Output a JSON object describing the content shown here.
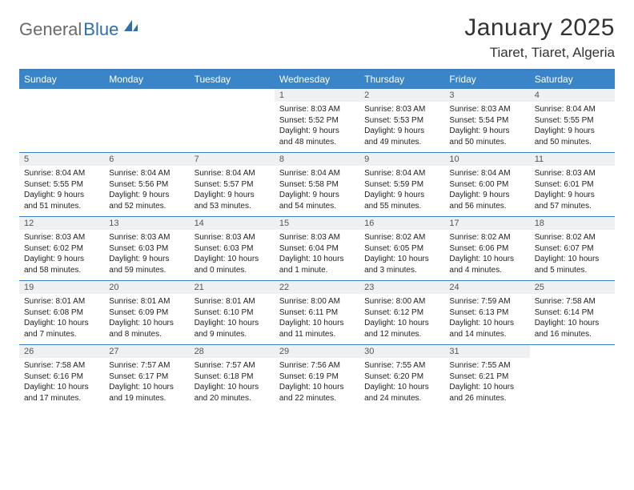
{
  "logo": {
    "text1": "General",
    "text2": "Blue",
    "shape_color": "#2f6fab"
  },
  "title": "January 2025",
  "location": "Tiaret, Tiaret, Algeria",
  "colors": {
    "header_bg": "#3a85c8",
    "header_fg": "#ffffff",
    "rule": "#3a7fbf",
    "daynum_bg": "#eef0f1",
    "daynum_fg": "#555555",
    "text": "#222222",
    "background": "#ffffff"
  },
  "weekdays": [
    "Sunday",
    "Monday",
    "Tuesday",
    "Wednesday",
    "Thursday",
    "Friday",
    "Saturday"
  ],
  "weeks": [
    [
      null,
      null,
      null,
      {
        "d": "1",
        "sr": "8:03 AM",
        "ss": "5:52 PM",
        "dl": "9 hours and 48 minutes."
      },
      {
        "d": "2",
        "sr": "8:03 AM",
        "ss": "5:53 PM",
        "dl": "9 hours and 49 minutes."
      },
      {
        "d": "3",
        "sr": "8:03 AM",
        "ss": "5:54 PM",
        "dl": "9 hours and 50 minutes."
      },
      {
        "d": "4",
        "sr": "8:04 AM",
        "ss": "5:55 PM",
        "dl": "9 hours and 50 minutes."
      }
    ],
    [
      {
        "d": "5",
        "sr": "8:04 AM",
        "ss": "5:55 PM",
        "dl": "9 hours and 51 minutes."
      },
      {
        "d": "6",
        "sr": "8:04 AM",
        "ss": "5:56 PM",
        "dl": "9 hours and 52 minutes."
      },
      {
        "d": "7",
        "sr": "8:04 AM",
        "ss": "5:57 PM",
        "dl": "9 hours and 53 minutes."
      },
      {
        "d": "8",
        "sr": "8:04 AM",
        "ss": "5:58 PM",
        "dl": "9 hours and 54 minutes."
      },
      {
        "d": "9",
        "sr": "8:04 AM",
        "ss": "5:59 PM",
        "dl": "9 hours and 55 minutes."
      },
      {
        "d": "10",
        "sr": "8:04 AM",
        "ss": "6:00 PM",
        "dl": "9 hours and 56 minutes."
      },
      {
        "d": "11",
        "sr": "8:03 AM",
        "ss": "6:01 PM",
        "dl": "9 hours and 57 minutes."
      }
    ],
    [
      {
        "d": "12",
        "sr": "8:03 AM",
        "ss": "6:02 PM",
        "dl": "9 hours and 58 minutes."
      },
      {
        "d": "13",
        "sr": "8:03 AM",
        "ss": "6:03 PM",
        "dl": "9 hours and 59 minutes."
      },
      {
        "d": "14",
        "sr": "8:03 AM",
        "ss": "6:03 PM",
        "dl": "10 hours and 0 minutes."
      },
      {
        "d": "15",
        "sr": "8:03 AM",
        "ss": "6:04 PM",
        "dl": "10 hours and 1 minute."
      },
      {
        "d": "16",
        "sr": "8:02 AM",
        "ss": "6:05 PM",
        "dl": "10 hours and 3 minutes."
      },
      {
        "d": "17",
        "sr": "8:02 AM",
        "ss": "6:06 PM",
        "dl": "10 hours and 4 minutes."
      },
      {
        "d": "18",
        "sr": "8:02 AM",
        "ss": "6:07 PM",
        "dl": "10 hours and 5 minutes."
      }
    ],
    [
      {
        "d": "19",
        "sr": "8:01 AM",
        "ss": "6:08 PM",
        "dl": "10 hours and 7 minutes."
      },
      {
        "d": "20",
        "sr": "8:01 AM",
        "ss": "6:09 PM",
        "dl": "10 hours and 8 minutes."
      },
      {
        "d": "21",
        "sr": "8:01 AM",
        "ss": "6:10 PM",
        "dl": "10 hours and 9 minutes."
      },
      {
        "d": "22",
        "sr": "8:00 AM",
        "ss": "6:11 PM",
        "dl": "10 hours and 11 minutes."
      },
      {
        "d": "23",
        "sr": "8:00 AM",
        "ss": "6:12 PM",
        "dl": "10 hours and 12 minutes."
      },
      {
        "d": "24",
        "sr": "7:59 AM",
        "ss": "6:13 PM",
        "dl": "10 hours and 14 minutes."
      },
      {
        "d": "25",
        "sr": "7:58 AM",
        "ss": "6:14 PM",
        "dl": "10 hours and 16 minutes."
      }
    ],
    [
      {
        "d": "26",
        "sr": "7:58 AM",
        "ss": "6:16 PM",
        "dl": "10 hours and 17 minutes."
      },
      {
        "d": "27",
        "sr": "7:57 AM",
        "ss": "6:17 PM",
        "dl": "10 hours and 19 minutes."
      },
      {
        "d": "28",
        "sr": "7:57 AM",
        "ss": "6:18 PM",
        "dl": "10 hours and 20 minutes."
      },
      {
        "d": "29",
        "sr": "7:56 AM",
        "ss": "6:19 PM",
        "dl": "10 hours and 22 minutes."
      },
      {
        "d": "30",
        "sr": "7:55 AM",
        "ss": "6:20 PM",
        "dl": "10 hours and 24 minutes."
      },
      {
        "d": "31",
        "sr": "7:55 AM",
        "ss": "6:21 PM",
        "dl": "10 hours and 26 minutes."
      },
      null
    ]
  ],
  "labels": {
    "sunrise": "Sunrise:",
    "sunset": "Sunset:",
    "daylight": "Daylight:"
  }
}
